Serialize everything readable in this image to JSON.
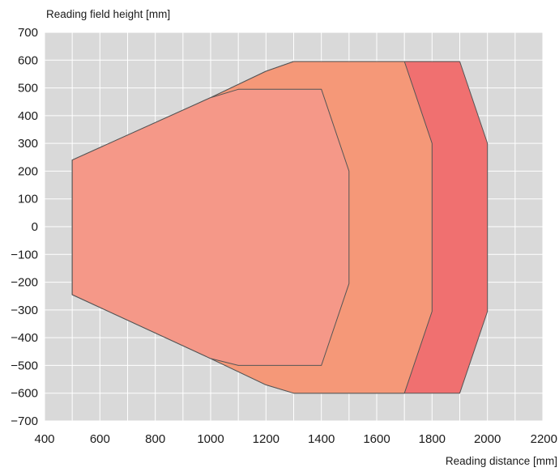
{
  "chart_data": {
    "type": "area",
    "title": "",
    "xlabel": "Reading distance [mm]",
    "ylabel": "Reading field height [mm]",
    "xlim": [
      400,
      2200
    ],
    "ylim": [
      -700,
      700
    ],
    "x_ticks": [
      400,
      600,
      800,
      1000,
      1200,
      1400,
      1600,
      1800,
      2000,
      2200
    ],
    "x_tick_labels": [
      "400",
      "600",
      "800",
      "1000",
      "1200",
      "1400",
      "1600",
      "1800",
      "2000",
      "2200"
    ],
    "y_ticks": [
      700,
      600,
      500,
      400,
      300,
      200,
      100,
      0,
      -100,
      -200,
      -300,
      -400,
      -500,
      -600,
      -700
    ],
    "y_tick_labels": [
      "700",
      "600",
      "500",
      "400",
      "300",
      "200",
      "100",
      "0",
      "−100",
      "−200",
      "−300",
      "−400",
      "−500",
      "−600",
      "−700"
    ],
    "x_minor_step": 100,
    "y_minor_step": 100,
    "grid": true,
    "legend": "none",
    "colors": {
      "background": "#d9d9d9",
      "grid": "#ffffff",
      "outline": "#555555"
    },
    "series": [
      {
        "color": "#f07070",
        "points": [
          [
            500,
            240
          ],
          [
            1000,
            465
          ],
          [
            1200,
            560
          ],
          [
            1300,
            595
          ],
          [
            1900,
            595
          ],
          [
            2000,
            300
          ],
          [
            2000,
            -305
          ],
          [
            1900,
            -600
          ],
          [
            1300,
            -600
          ],
          [
            1200,
            -570
          ],
          [
            1000,
            -475
          ],
          [
            500,
            -245
          ]
        ]
      },
      {
        "color": "#f59878",
        "points": [
          [
            500,
            240
          ],
          [
            1000,
            465
          ],
          [
            1200,
            560
          ],
          [
            1300,
            595
          ],
          [
            1700,
            595
          ],
          [
            1800,
            300
          ],
          [
            1800,
            -305
          ],
          [
            1700,
            -600
          ],
          [
            1300,
            -600
          ],
          [
            1200,
            -570
          ],
          [
            1000,
            -475
          ],
          [
            500,
            -245
          ]
        ]
      },
      {
        "color": "#f59888",
        "points": [
          [
            500,
            240
          ],
          [
            1000,
            465
          ],
          [
            1100,
            495
          ],
          [
            1400,
            495
          ],
          [
            1500,
            200
          ],
          [
            1500,
            -205
          ],
          [
            1400,
            -500
          ],
          [
            1100,
            -500
          ],
          [
            1000,
            -475
          ],
          [
            500,
            -245
          ]
        ]
      }
    ]
  }
}
